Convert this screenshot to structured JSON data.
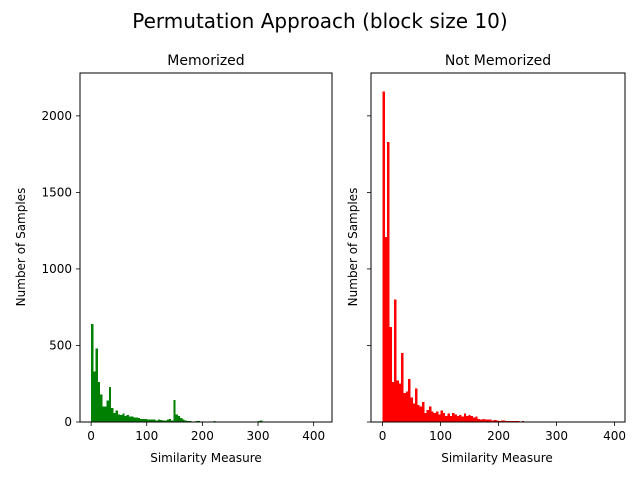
{
  "figure": {
    "suptitle": "Permutation Approach (block size 10)"
  },
  "chart_data": [
    {
      "type": "bar",
      "title": "Memorized",
      "xlabel": "Similarity Measure",
      "ylabel": "Number of Samples",
      "xlim": [
        -20,
        433
      ],
      "ylim": [
        0,
        2280
      ],
      "xticks": [
        0,
        100,
        200,
        300,
        400
      ],
      "yticks": [
        0,
        500,
        1000,
        1500,
        2000
      ],
      "bin_width": 4,
      "color": "#008000",
      "bins": [
        [
          0,
          640
        ],
        [
          4,
          330
        ],
        [
          8,
          480
        ],
        [
          12,
          260
        ],
        [
          16,
          180
        ],
        [
          20,
          100
        ],
        [
          24,
          100
        ],
        [
          28,
          140
        ],
        [
          32,
          230
        ],
        [
          36,
          90
        ],
        [
          40,
          60
        ],
        [
          44,
          75
        ],
        [
          48,
          50
        ],
        [
          52,
          45
        ],
        [
          56,
          55
        ],
        [
          60,
          40
        ],
        [
          64,
          45
        ],
        [
          68,
          35
        ],
        [
          72,
          35
        ],
        [
          76,
          30
        ],
        [
          80,
          30
        ],
        [
          84,
          25
        ],
        [
          88,
          20
        ],
        [
          92,
          20
        ],
        [
          96,
          20
        ],
        [
          100,
          15
        ],
        [
          104,
          15
        ],
        [
          108,
          15
        ],
        [
          112,
          15
        ],
        [
          116,
          10
        ],
        [
          120,
          15
        ],
        [
          124,
          12
        ],
        [
          128,
          10
        ],
        [
          132,
          10
        ],
        [
          136,
          15
        ],
        [
          140,
          20
        ],
        [
          144,
          10
        ],
        [
          148,
          145
        ],
        [
          152,
          50
        ],
        [
          156,
          40
        ],
        [
          160,
          25
        ],
        [
          164,
          15
        ],
        [
          168,
          10
        ],
        [
          172,
          8
        ],
        [
          176,
          6
        ],
        [
          180,
          4
        ],
        [
          184,
          4
        ],
        [
          188,
          8
        ],
        [
          192,
          6
        ],
        [
          196,
          4
        ],
        [
          200,
          4
        ],
        [
          204,
          3
        ],
        [
          208,
          3
        ],
        [
          212,
          3
        ],
        [
          216,
          3
        ],
        [
          220,
          5
        ],
        [
          224,
          2
        ],
        [
          228,
          4
        ],
        [
          236,
          3
        ],
        [
          244,
          2
        ],
        [
          252,
          3
        ],
        [
          256,
          3
        ],
        [
          264,
          3
        ],
        [
          272,
          3
        ],
        [
          280,
          4
        ],
        [
          288,
          3
        ],
        [
          300,
          8
        ],
        [
          304,
          10
        ],
        [
          308,
          3
        ]
      ]
    },
    {
      "type": "bar",
      "title": "Not Memorized",
      "xlabel": "Similarity Measure",
      "ylabel": "Number of Samples",
      "xlim": [
        -20,
        418
      ],
      "ylim": [
        0,
        2280
      ],
      "xticks": [
        0,
        100,
        200,
        300,
        400
      ],
      "yticks": [
        0,
        500,
        1000,
        1500,
        2000
      ],
      "bin_width": 4,
      "color": "#ff0000",
      "bins": [
        [
          0,
          2160
        ],
        [
          4,
          1210
        ],
        [
          8,
          1830
        ],
        [
          12,
          620
        ],
        [
          16,
          260
        ],
        [
          20,
          800
        ],
        [
          24,
          270
        ],
        [
          28,
          250
        ],
        [
          32,
          450
        ],
        [
          36,
          190
        ],
        [
          40,
          200
        ],
        [
          44,
          280
        ],
        [
          48,
          160
        ],
        [
          52,
          120
        ],
        [
          56,
          220
        ],
        [
          60,
          110
        ],
        [
          64,
          100
        ],
        [
          68,
          130
        ],
        [
          72,
          60
        ],
        [
          76,
          80
        ],
        [
          80,
          100
        ],
        [
          84,
          70
        ],
        [
          88,
          60
        ],
        [
          92,
          70
        ],
        [
          96,
          50
        ],
        [
          100,
          75
        ],
        [
          104,
          60
        ],
        [
          108,
          40
        ],
        [
          112,
          55
        ],
        [
          116,
          40
        ],
        [
          120,
          60
        ],
        [
          124,
          50
        ],
        [
          128,
          40
        ],
        [
          132,
          45
        ],
        [
          136,
          35
        ],
        [
          140,
          55
        ],
        [
          144,
          40
        ],
        [
          148,
          45
        ],
        [
          152,
          40
        ],
        [
          156,
          30
        ],
        [
          160,
          35
        ],
        [
          164,
          20
        ],
        [
          168,
          15
        ],
        [
          172,
          20
        ],
        [
          176,
          15
        ],
        [
          180,
          15
        ],
        [
          184,
          15
        ],
        [
          188,
          10
        ],
        [
          192,
          12
        ],
        [
          196,
          10
        ],
        [
          200,
          8
        ],
        [
          204,
          10
        ],
        [
          208,
          10
        ],
        [
          212,
          8
        ],
        [
          216,
          6
        ],
        [
          220,
          8
        ],
        [
          224,
          6
        ],
        [
          228,
          5
        ],
        [
          232,
          5
        ],
        [
          236,
          4
        ],
        [
          240,
          5
        ],
        [
          244,
          4
        ],
        [
          248,
          3
        ],
        [
          252,
          3
        ],
        [
          256,
          3
        ],
        [
          260,
          3
        ],
        [
          264,
          3
        ],
        [
          268,
          3
        ],
        [
          272,
          2
        ],
        [
          276,
          2
        ]
      ]
    }
  ]
}
